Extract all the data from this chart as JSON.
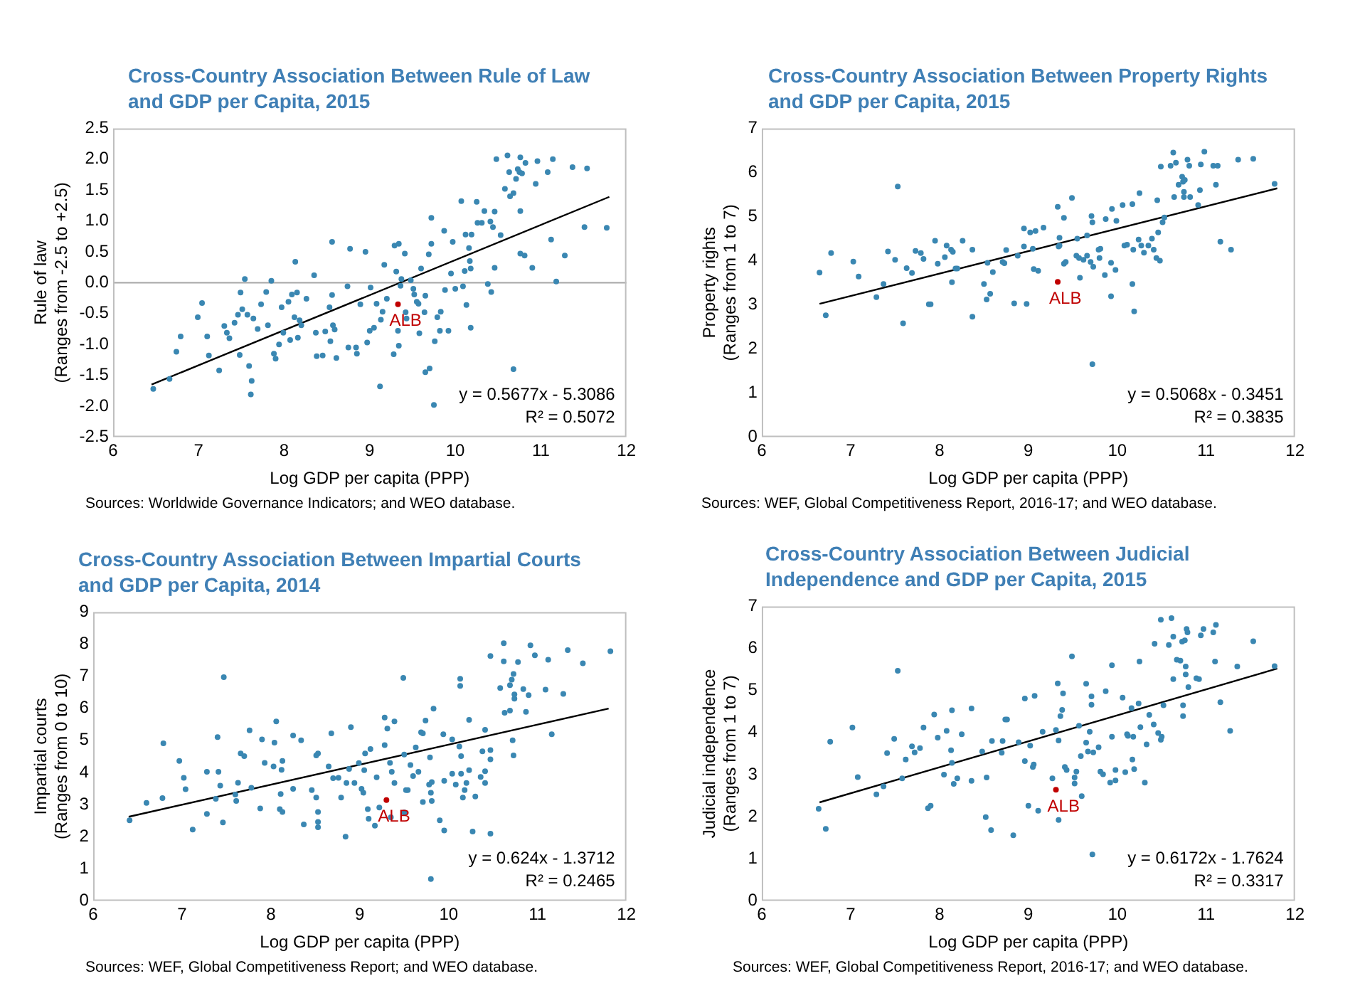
{
  "chart_data": [
    {
      "type": "scatter",
      "title": "Cross-Country Association Between Rule of Law\nand GDP per Capita, 2015",
      "xlabel": "Log GDP per capita (PPP)",
      "ylabel": "Rule of law\n(Ranges from -2.5 to +2.5)",
      "xlim": [
        6,
        12
      ],
      "xticks": [
        6,
        7,
        8,
        9,
        10,
        11,
        12
      ],
      "ylim": [
        -2.5,
        2.5
      ],
      "yticks": [
        -2.5,
        {
          "value": -2,
          "label": "-2.0"
        },
        -1.5,
        {
          "value": -1,
          "label": "-1.0"
        },
        -0.5,
        {
          "value": 0,
          "label": "0.0"
        },
        0.5,
        {
          "value": 1,
          "label": "1.0"
        },
        1.5,
        {
          "value": 2,
          "label": "2.0"
        },
        2.5
      ],
      "marker": "circle",
      "ref_lines": [
        {
          "axis": "y",
          "value": 0,
          "color": "#a6a6a6"
        }
      ],
      "series": [
        {
          "color": "#3a87b2",
          "x": [
            6.47,
            6.66,
            6.74,
            6.79,
            6.99,
            7.04,
            7.1,
            7.12,
            7.24,
            7.3,
            7.33,
            7.36,
            7.42,
            7.46,
            7.49,
            7.51,
            7.48,
            7.54,
            7.57,
            7.59,
            7.62,
            7.61,
            7.64,
            7.69,
            7.73,
            7.79,
            7.81,
            7.85,
            7.88,
            7.9,
            7.94,
            7.97,
            7.99,
            8.05,
            8.07,
            8.09,
            8.12,
            8.13,
            8.15,
            8.16,
            8.18,
            8.2,
            8.26,
            8.35,
            8.37,
            8.38,
            8.45,
            8.48,
            8.53,
            8.54,
            8.56,
            8.56,
            8.57,
            8.59,
            8.61,
            8.74,
            8.75,
            8.77,
            8.84,
            8.85,
            8.89,
            8.95,
            8.97,
            9.01,
            9.0,
            9.05,
            9.08,
            9.13,
            9.15,
            9.12,
            9.17,
            9.2,
            9.28,
            9.29,
            9.31,
            9.33,
            9.34,
            9.34,
            9.36,
            9.37,
            9.41,
            9.42,
            9.43,
            9.48,
            9.51,
            9.52,
            9.55,
            9.57,
            9.58,
            9.6,
            9.64,
            9.65,
            9.65,
            9.7,
            9.69,
            9.72,
            9.72,
            9.75,
            9.76,
            9.79,
            9.82,
            9.83,
            9.87,
            9.88,
            9.92,
            9.95,
            9.97,
            10.0,
            10.07,
            10.09,
            10.11,
            10.12,
            10.13,
            10.16,
            10.17,
            10.18,
            10.18,
            10.19,
            10.25,
            10.26,
            10.31,
            10.34,
            10.38,
            10.41,
            10.42,
            10.44,
            10.46,
            10.46,
            10.48,
            10.53,
            10.58,
            10.61,
            10.63,
            10.64,
            10.68,
            10.71,
            10.73,
            10.75,
            10.76,
            10.76,
            10.76,
            10.78,
            10.81,
            10.68,
            10.82,
            10.9,
            10.94,
            10.96,
            11.08,
            11.14,
            11.12,
            11.18,
            11.28,
            11.37,
            11.51,
            11.54,
            11.77
          ],
          "values": [
            -1.72,
            -1.56,
            -1.12,
            -0.87,
            -0.56,
            -0.33,
            -0.87,
            -1.18,
            -1.42,
            -0.7,
            -0.81,
            -0.9,
            -0.65,
            -0.52,
            -0.16,
            -0.43,
            -1.17,
            0.06,
            -0.52,
            -1.35,
            -1.59,
            -1.81,
            -0.58,
            -0.75,
            -0.35,
            -0.15,
            -0.69,
            0.03,
            -1.15,
            -1.23,
            -1.0,
            -0.4,
            -0.81,
            -0.31,
            -0.93,
            -0.19,
            -0.56,
            0.34,
            -0.16,
            -0.89,
            -0.61,
            -0.69,
            -0.26,
            0.12,
            -0.81,
            -1.19,
            -1.18,
            -0.79,
            -0.4,
            -0.95,
            -0.2,
            0.66,
            -0.69,
            -0.76,
            -1.22,
            -0.06,
            -1.05,
            0.55,
            -1.05,
            -1.15,
            -0.35,
            0.5,
            -0.97,
            -0.08,
            -0.78,
            -0.73,
            -0.34,
            -0.6,
            -0.47,
            -1.68,
            0.29,
            -0.26,
            -1.16,
            0.6,
            0.18,
            -0.78,
            -1.02,
            0.63,
            -0.05,
            0.06,
            0.47,
            -0.48,
            -0.58,
            0.04,
            -0.1,
            -0.19,
            -0.31,
            -0.34,
            -0.82,
            0.23,
            -0.48,
            -0.21,
            -1.45,
            -1.39,
            0.46,
            0.63,
            1.05,
            -1.98,
            -0.95,
            -0.56,
            -0.78,
            -0.47,
            0.84,
            -0.12,
            -0.78,
            0.15,
            0.66,
            -0.1,
            1.32,
            -0.06,
            0.19,
            0.78,
            -0.36,
            0.56,
            0.35,
            -0.73,
            0.23,
            0.78,
            1.31,
            0.97,
            0.97,
            1.16,
            -0.02,
            0.99,
            -0.15,
            0.9,
            0.24,
            1.15,
            2.0,
            0.77,
            1.52,
            2.06,
            1.79,
            1.4,
            1.45,
            1.68,
            1.84,
            1.79,
            1.16,
            2.03,
            0.47,
            1.77,
            0.44,
            -1.4,
            1.94,
            0.24,
            1.6,
            1.97,
            1.79,
            2.0,
            0.7,
            0.02,
            0.44,
            1.87,
            0.9,
            1.85,
            0.89
          ]
        },
        {
          "type": "scatter",
          "name": "ALB",
          "color": "#c00000",
          "x": [
            9.33
          ],
          "values": [
            -0.35
          ]
        },
        {
          "type": "line",
          "marker": "none",
          "color": "#000000",
          "x": [
            6.45,
            11.8
          ],
          "values": [
            -1.65,
            1.39
          ]
        }
      ],
      "annotations": [
        "y = 0.5677x - 5.3086",
        "R² = 0.5072",
        "Sources: Worldwide Governance Indicators; and WEO database."
      ]
    },
    {
      "type": "scatter",
      "title": "Cross-Country Association Between Property Rights\nand GDP per Capita, 2015",
      "xlabel": "Log GDP per capita (PPP)",
      "ylabel": "Property rights\n(Ranges from 1 to 7)",
      "xlim": [
        6,
        12
      ],
      "xticks": [
        6,
        7,
        8,
        9,
        10,
        11,
        12
      ],
      "ylim": [
        0,
        7
      ],
      "yticks": [
        0,
        1,
        2,
        3,
        4,
        5,
        6,
        7
      ],
      "marker": "circle",
      "series": [
        {
          "color": "#3a87b2",
          "x": [
            6.65,
            6.72,
            6.78,
            7.03,
            7.09,
            7.29,
            7.37,
            7.42,
            7.5,
            7.53,
            7.59,
            7.63,
            7.69,
            7.73,
            7.79,
            7.82,
            7.88,
            7.9,
            7.95,
            7.98,
            8.06,
            8.08,
            8.13,
            8.14,
            8.15,
            8.18,
            8.2,
            8.26,
            8.37,
            8.37,
            8.5,
            8.53,
            8.54,
            8.57,
            8.6,
            8.75,
            8.71,
            8.73,
            8.84,
            8.88,
            8.95,
            8.95,
            8.98,
            9.02,
            9.05,
            9.06,
            9.08,
            9.11,
            9.17,
            9.33,
            9.34,
            9.35,
            9.35,
            9.4,
            9.4,
            9.42,
            9.49,
            9.54,
            9.55,
            9.57,
            9.58,
            9.62,
            9.66,
            9.66,
            9.7,
            9.71,
            9.72,
            9.73,
            9.72,
            9.79,
            9.8,
            9.81,
            9.86,
            9.87,
            9.93,
            9.93,
            9.94,
            9.98,
            9.99,
            10.06,
            10.08,
            10.11,
            10.17,
            10.17,
            10.19,
            10.18,
            10.24,
            10.25,
            10.27,
            10.3,
            10.35,
            10.39,
            10.41,
            10.44,
            10.45,
            10.46,
            10.48,
            10.49,
            10.51,
            10.53,
            10.6,
            10.63,
            10.64,
            10.66,
            10.69,
            10.73,
            10.74,
            10.75,
            10.75,
            10.76,
            10.79,
            10.81,
            10.82,
            10.91,
            10.93,
            10.94,
            10.98,
            11.08,
            11.11,
            11.13,
            11.16,
            11.28,
            11.36,
            11.53,
            11.77
          ],
          "values": [
            3.73,
            2.76,
            4.17,
            3.98,
            3.64,
            3.17,
            3.47,
            4.21,
            4.02,
            5.68,
            2.58,
            3.83,
            3.72,
            4.22,
            4.17,
            4.04,
            3.01,
            3.01,
            4.45,
            3.93,
            4.08,
            4.34,
            4.25,
            3.51,
            4.2,
            3.82,
            3.82,
            4.45,
            4.25,
            2.73,
            3.47,
            3.12,
            3.95,
            3.25,
            3.74,
            4.24,
            3.97,
            3.94,
            3.03,
            4.11,
            4.32,
            4.73,
            3.02,
            4.64,
            4.27,
            3.81,
            4.67,
            3.77,
            4.75,
            5.22,
            4.32,
            4.52,
            4.34,
            4.97,
            3.93,
            3.97,
            5.42,
            4.11,
            4.5,
            4.06,
            3.61,
            4.02,
            4.57,
            4.11,
            3.97,
            5.01,
            4.87,
            3.86,
            1.65,
            4.25,
            4.06,
            4.27,
            3.67,
            4.94,
            3.95,
            3.19,
            5.17,
            3.79,
            4.9,
            5.26,
            4.34,
            4.36,
            5.28,
            3.47,
            2.85,
            4.25,
            4.48,
            5.53,
            4.34,
            4.18,
            4.34,
            4.5,
            4.25,
            4.06,
            5.37,
            4.64,
            4.0,
            6.13,
            4.87,
            4.98,
            6.15,
            6.45,
            5.44,
            6.22,
            5.72,
            5.9,
            5.79,
            5.44,
            5.56,
            5.83,
            6.29,
            6.15,
            5.44,
            5.26,
            5.6,
            6.18,
            6.47,
            6.15,
            5.72,
            6.15,
            4.43,
            4.25,
            6.29,
            6.31,
            5.74
          ]
        },
        {
          "type": "scatter",
          "name": "ALB",
          "color": "#c00000",
          "x": [
            9.33
          ],
          "values": [
            3.52
          ]
        },
        {
          "type": "line",
          "marker": "none",
          "color": "#000000",
          "x": [
            6.65,
            11.8
          ],
          "values": [
            3.02,
            5.64
          ]
        }
      ],
      "annotations": [
        "y = 0.5068x - 0.3451",
        "R² = 0.3835",
        "Sources: WEF, Global Competitiveness Report, 2016-17; and WEO database."
      ]
    },
    {
      "type": "scatter",
      "title": "Cross-Country Association Between Impartial Courts\nand GDP per Capita, 2014",
      "xlabel": "Log GDP per capita (PPP)",
      "ylabel": "Impartial courts\n(Ranges from 0 to 10)",
      "xlim": [
        6,
        12
      ],
      "xticks": [
        6,
        7,
        8,
        9,
        10,
        11,
        12
      ],
      "ylim": [
        0,
        9
      ],
      "yticks": [
        0,
        1,
        2,
        3,
        4,
        5,
        6,
        7,
        8,
        9
      ],
      "marker": "circle",
      "series": [
        {
          "color": "#3a87b2",
          "x": [
            6.41,
            6.6,
            6.78,
            6.79,
            6.97,
            7.02,
            7.04,
            7.12,
            7.28,
            7.28,
            7.38,
            7.4,
            7.41,
            7.43,
            7.46,
            7.47,
            7.6,
            7.61,
            7.63,
            7.66,
            7.7,
            7.76,
            7.78,
            7.88,
            7.9,
            7.93,
            8.03,
            8.04,
            8.06,
            8.1,
            8.11,
            8.12,
            8.13,
            8.13,
            8.25,
            8.25,
            8.34,
            8.37,
            8.46,
            8.51,
            8.51,
            8.53,
            8.53,
            8.53,
            8.53,
            8.65,
            8.68,
            8.7,
            8.76,
            8.79,
            8.84,
            8.85,
            8.88,
            8.9,
            8.94,
            8.99,
            9.02,
            9.04,
            9.05,
            9.06,
            9.09,
            9.1,
            9.12,
            9.17,
            9.19,
            9.22,
            9.28,
            9.28,
            9.31,
            9.34,
            9.35,
            9.36,
            9.39,
            9.39,
            9.5,
            9.49,
            9.5,
            9.52,
            9.54,
            9.57,
            9.6,
            9.63,
            9.66,
            9.69,
            9.71,
            9.71,
            9.74,
            9.78,
            9.79,
            9.8,
            9.8,
            9.81,
            9.81,
            9.83,
            9.9,
            9.94,
            9.95,
            9.95,
            10.04,
            10.04,
            10.08,
            10.12,
            10.13,
            10.13,
            10.14,
            10.14,
            10.16,
            10.18,
            10.2,
            10.23,
            10.23,
            10.27,
            10.3,
            10.36,
            10.38,
            10.41,
            10.41,
            10.41,
            10.47,
            10.47,
            10.47,
            10.47,
            10.58,
            10.62,
            10.62,
            10.63,
            10.69,
            10.69,
            10.71,
            10.73,
            10.72,
            10.73,
            10.74,
            10.74,
            10.78,
            10.84,
            10.87,
            10.9,
            10.92,
            10.97,
            11.09,
            11.12,
            11.16,
            11.29,
            11.34,
            11.51,
            11.82
          ],
          "values": [
            2.51,
            3.05,
            3.2,
            4.91,
            4.36,
            3.83,
            3.48,
            2.22,
            4.02,
            2.71,
            3.18,
            5.1,
            4.02,
            3.59,
            2.44,
            6.97,
            3.31,
            3.11,
            3.68,
            4.59,
            4.51,
            5.31,
            3.52,
            2.88,
            5.03,
            4.3,
            4.19,
            4.93,
            5.59,
            2.86,
            3.33,
            4.08,
            4.36,
            2.77,
            3.49,
            5.15,
            5.0,
            2.38,
            3.45,
            3.22,
            4.53,
            4.59,
            2.77,
            2.46,
            2.29,
            4.19,
            5.22,
            3.82,
            3.83,
            3.22,
            2.0,
            3.67,
            4.11,
            5.41,
            3.67,
            4.29,
            3.49,
            3.37,
            4.07,
            4.59,
            2.86,
            2.56,
            4.73,
            2.34,
            3.85,
            2.91,
            4.85,
            5.71,
            5.37,
            4.3,
            2.6,
            4.02,
            3.67,
            5.59,
            2.75,
            6.95,
            4.56,
            3.45,
            3.45,
            4.23,
            3.89,
            4.78,
            4.02,
            5.25,
            5.22,
            3.08,
            5.62,
            3.62,
            4.47,
            3.37,
            0.68,
            3.7,
            3.11,
            5.99,
            2.51,
            5.19,
            3.74,
            2.19,
            5.03,
            3.96,
            3.62,
            4.81,
            6.92,
            6.7,
            4.51,
            3.96,
            3.22,
            3.45,
            3.67,
            5.64,
            4.07,
            2.16,
            3.25,
            3.86,
            4.66,
            5.33,
            4.04,
            3.67,
            7.63,
            4.7,
            4.41,
            2.09,
            6.63,
            8.03,
            7.46,
            5.86,
            6.72,
            5.93,
            6.89,
            7.07,
            5.0,
            4.53,
            6.43,
            6.3,
            7.44,
            6.6,
            5.89,
            6.41,
            7.96,
            7.65,
            6.58,
            7.51,
            5.19,
            6.45,
            7.81,
            7.4,
            7.78
          ]
        },
        {
          "type": "scatter",
          "name": "ALB",
          "color": "#c00000",
          "x": [
            9.3
          ],
          "values": [
            3.14
          ]
        },
        {
          "type": "line",
          "marker": "none",
          "color": "#000000",
          "x": [
            6.4,
            11.8
          ],
          "values": [
            2.62,
            5.99
          ]
        }
      ],
      "annotations": [
        "y = 0.624x - 1.3712",
        "R² = 0.2465",
        "Sources: WEF, Global Competitiveness Report; and WEO database."
      ]
    },
    {
      "type": "scatter",
      "title": "Cross-Country Association Between Judicial\nIndependence and GDP per Capita, 2015",
      "xlabel": "Log GDP per capita (PPP)",
      "ylabel": "Judicial independence\n(Ranges from 1 to 7)",
      "xlim": [
        6,
        12
      ],
      "xticks": [
        6,
        7,
        8,
        9,
        10,
        11,
        12
      ],
      "ylim": [
        0,
        7
      ],
      "yticks": [
        0,
        1,
        2,
        3,
        4,
        5,
        6,
        7
      ],
      "marker": "circle",
      "series": [
        {
          "color": "#3a87b2",
          "x": [
            6.64,
            6.72,
            6.77,
            7.02,
            7.08,
            7.29,
            7.37,
            7.41,
            7.49,
            7.53,
            7.58,
            7.62,
            7.69,
            7.72,
            7.78,
            7.82,
            7.87,
            7.9,
            7.94,
            7.98,
            8.05,
            8.08,
            8.13,
            8.14,
            8.14,
            8.16,
            8.2,
            8.25,
            8.36,
            8.36,
            8.48,
            8.52,
            8.53,
            8.58,
            8.59,
            8.7,
            8.71,
            8.74,
            8.76,
            8.83,
            8.89,
            8.96,
            8.96,
            9.0,
            9.02,
            9.05,
            9.06,
            9.07,
            9.11,
            9.16,
            9.27,
            9.33,
            9.31,
            9.34,
            9.34,
            9.36,
            9.38,
            9.39,
            9.41,
            9.43,
            9.49,
            9.52,
            9.52,
            9.54,
            9.57,
            9.59,
            9.6,
            9.65,
            9.65,
            9.67,
            9.69,
            9.71,
            9.71,
            9.73,
            9.72,
            9.79,
            9.81,
            9.84,
            9.87,
            9.92,
            9.94,
            9.94,
            9.98,
            9.98,
            10.06,
            10.09,
            10.11,
            10.12,
            10.16,
            10.17,
            10.18,
            10.19,
            10.24,
            10.25,
            10.26,
            10.33,
            10.31,
            10.36,
            10.41,
            10.42,
            10.46,
            10.49,
            10.49,
            10.5,
            10.52,
            10.58,
            10.61,
            10.63,
            10.63,
            10.67,
            10.71,
            10.73,
            10.74,
            10.74,
            10.76,
            10.77,
            10.77,
            10.78,
            10.79,
            10.8,
            10.89,
            10.92,
            10.94,
            10.97,
            11.08,
            11.11,
            11.1,
            11.16,
            11.27,
            11.35,
            11.53,
            11.77
          ],
          "values": [
            2.19,
            1.71,
            3.78,
            4.12,
            2.94,
            2.53,
            2.72,
            3.51,
            3.85,
            5.47,
            2.91,
            3.36,
            3.67,
            3.53,
            3.63,
            4.12,
            2.2,
            2.26,
            4.43,
            3.88,
            3.0,
            4.04,
            3.58,
            3.28,
            4.53,
            2.78,
            2.91,
            3.96,
            4.57,
            2.85,
            3.55,
            1.99,
            2.93,
            1.68,
            3.8,
            3.52,
            3.8,
            4.31,
            4.31,
            1.56,
            3.77,
            3.32,
            4.81,
            2.26,
            3.69,
            3.18,
            3.24,
            4.87,
            2.14,
            4.02,
            2.91,
            5.17,
            4.06,
            3.81,
            1.92,
            4.39,
            4.54,
            4.93,
            3.18,
            3.11,
            5.81,
            2.93,
            2.79,
            3.07,
            4.16,
            3.44,
            2.49,
            5.16,
            3.76,
            3.55,
            4.02,
            4.86,
            4.66,
            3.53,
            1.1,
            3.65,
            3.07,
            3.01,
            4.98,
            2.81,
            3.9,
            5.6,
            3.11,
            2.86,
            4.83,
            3.06,
            3.96,
            3.92,
            4.58,
            3.36,
            3.9,
            3.13,
            4.69,
            5.69,
            4.13,
            3.72,
            2.81,
            4.42,
            4.19,
            6.11,
            3.99,
            6.68,
            3.83,
            3.9,
            4.65,
            6.08,
            6.72,
            6.28,
            5.27,
            5.73,
            5.71,
            6.16,
            4.39,
            4.65,
            6.19,
            5.38,
            5.57,
            6.46,
            6.38,
            5.08,
            5.29,
            5.27,
            6.31,
            6.46,
            6.38,
            6.56,
            5.69,
            4.72,
            4.04,
            5.57,
            6.17,
            5.58
          ]
        },
        {
          "type": "scatter",
          "name": "ALB",
          "color": "#c00000",
          "x": [
            9.31
          ],
          "values": [
            2.64
          ]
        },
        {
          "type": "line",
          "marker": "none",
          "color": "#000000",
          "x": [
            6.65,
            11.8
          ],
          "values": [
            2.34,
            5.52
          ]
        }
      ],
      "annotations": [
        "y = 0.6172x - 1.7624",
        "R² = 0.3317",
        "Sources: WEF, Global Competitiveness Report, 2016-17; and WEO database."
      ]
    }
  ]
}
